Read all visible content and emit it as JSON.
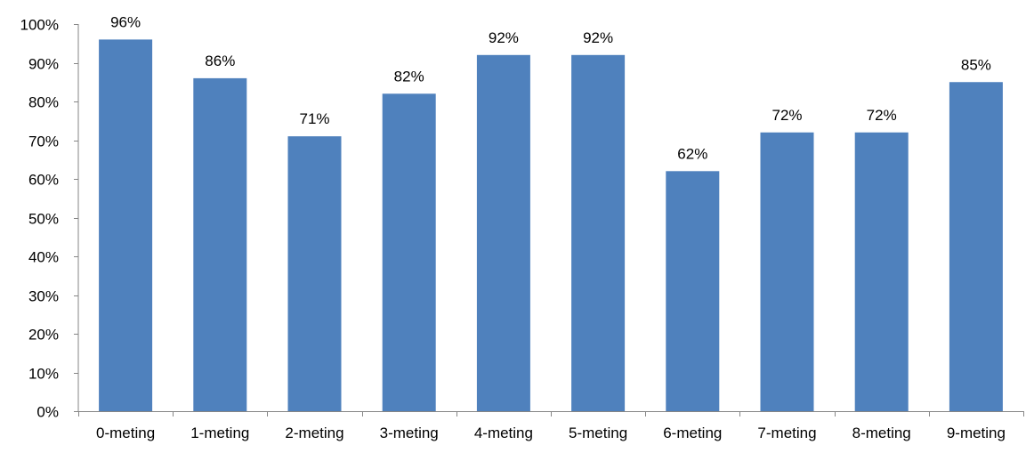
{
  "chart_data": {
    "type": "bar",
    "title": "",
    "xlabel": "",
    "ylabel": "",
    "categories": [
      "0-meting",
      "1-meting",
      "2-meting",
      "3-meting",
      "4-meting",
      "5-meting",
      "6-meting",
      "7-meting",
      "8-meting",
      "9-meting"
    ],
    "values": [
      96,
      86,
      71,
      82,
      92,
      92,
      62,
      72,
      72,
      85
    ],
    "data_labels": [
      "96%",
      "86%",
      "71%",
      "82%",
      "92%",
      "92%",
      "62%",
      "72%",
      "72%",
      "85%"
    ],
    "ylim": [
      0,
      100
    ],
    "yticks": [
      0,
      10,
      20,
      30,
      40,
      50,
      60,
      70,
      80,
      90,
      100
    ],
    "ytick_labels": [
      "0%",
      "10%",
      "20%",
      "30%",
      "40%",
      "50%",
      "60%",
      "70%",
      "80%",
      "90%",
      "100%"
    ],
    "grid": false,
    "legend": "none",
    "bar_color": "#4f81bd",
    "axis_color": "#868686"
  }
}
